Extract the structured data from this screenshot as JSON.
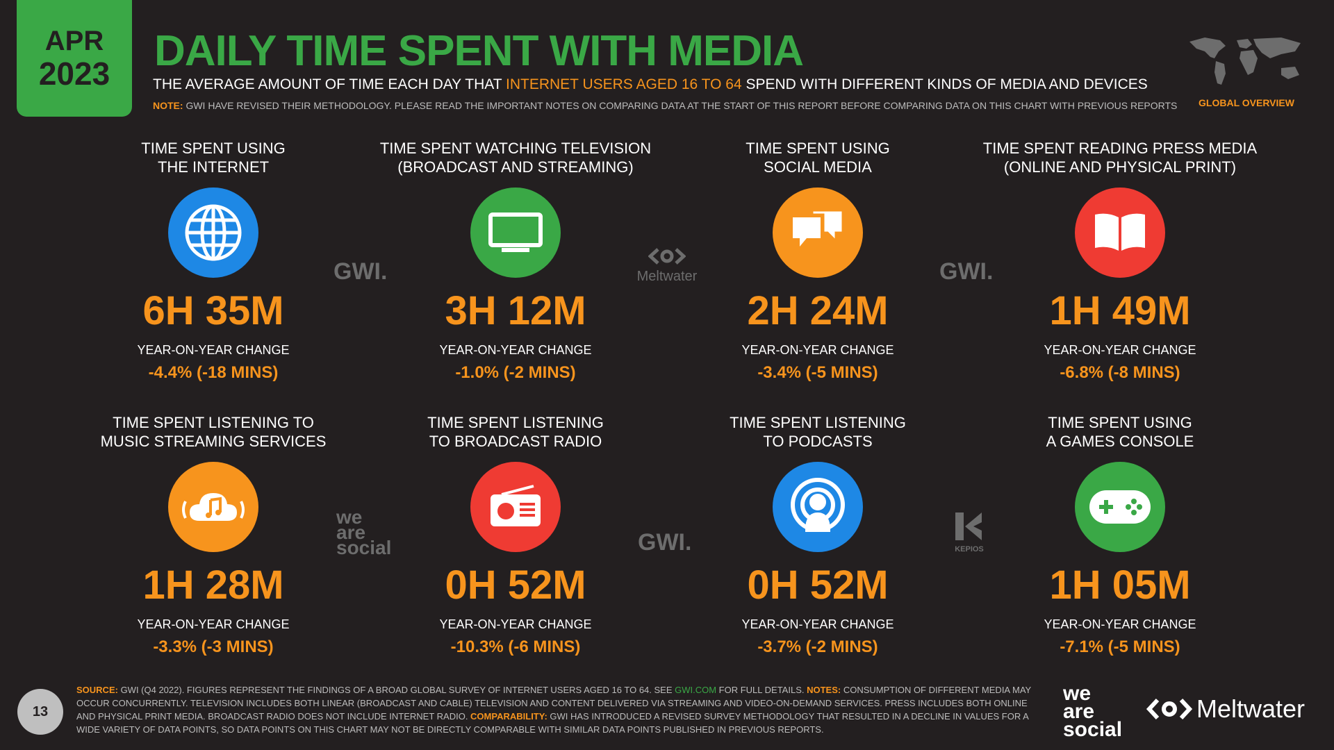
{
  "date": {
    "month": "APR",
    "year": "2023"
  },
  "header": {
    "title": "DAILY TIME SPENT WITH MEDIA",
    "subtitle_a": "THE AVERAGE AMOUNT OF TIME EACH DAY THAT ",
    "subtitle_hl": "INTERNET USERS AGED 16 TO 64",
    "subtitle_b": " SPEND WITH DIFFERENT KINDS OF MEDIA AND DEVICES",
    "note_label": "NOTE:",
    "note_text": " GWI HAVE REVISED THEIR METHODOLOGY. PLEASE READ THE IMPORTANT NOTES ON COMPARING DATA AT THE START OF THIS REPORT BEFORE COMPARING DATA ON THIS CHART WITH PREVIOUS REPORTS",
    "overview": "GLOBAL OVERVIEW"
  },
  "yoy_label": "YEAR-ON-YEAR CHANGE",
  "cells": [
    {
      "l1": "TIME SPENT USING",
      "l2": "THE INTERNET",
      "value": "6H 35M",
      "change": "-4.4% (-18 MINS)",
      "icon": "globe-icon",
      "color": "#1e88e5"
    },
    {
      "l1": "TIME SPENT WATCHING TELEVISION",
      "l2": "(BROADCAST AND STREAMING)",
      "value": "3H 12M",
      "change": "-1.0% (-2 MINS)",
      "icon": "tv-icon",
      "color": "#3aa846"
    },
    {
      "l1": "TIME SPENT USING",
      "l2": "SOCIAL MEDIA",
      "value": "2H 24M",
      "change": "-3.4% (-5 MINS)",
      "icon": "chat-bubbles-icon",
      "color": "#f7941d"
    },
    {
      "l1": "TIME SPENT READING PRESS MEDIA",
      "l2": "(ONLINE AND PHYSICAL PRINT)",
      "value": "1H 49M",
      "change": "-6.8% (-8 MINS)",
      "icon": "book-icon",
      "color": "#ef3b33"
    },
    {
      "l1": "TIME SPENT LISTENING TO",
      "l2": "MUSIC STREAMING SERVICES",
      "value": "1H 28M",
      "change": "-3.3% (-3 MINS)",
      "icon": "music-cloud-icon",
      "color": "#f7941d"
    },
    {
      "l1": "TIME SPENT LISTENING",
      "l2": "TO BROADCAST RADIO",
      "value": "0H 52M",
      "change": "-10.3% (-6 MINS)",
      "icon": "radio-icon",
      "color": "#ef3b33"
    },
    {
      "l1": "TIME SPENT LISTENING",
      "l2": "TO PODCASTS",
      "value": "0H 52M",
      "change": "-3.7% (-2 MINS)",
      "icon": "podcast-icon",
      "color": "#1e88e5"
    },
    {
      "l1": "TIME SPENT USING",
      "l2": "A GAMES CONSOLE",
      "value": "1H 05M",
      "change": "-7.1% (-5 MINS)",
      "icon": "gamepad-icon",
      "color": "#3aa846"
    }
  ],
  "watermarks": {
    "gwi": "GWI.",
    "meltwater": "Meltwater",
    "we": "we",
    "are": "are",
    "social": "social",
    "kepios": "KEPIOS"
  },
  "footer": {
    "page": "13",
    "source_label": "SOURCE:",
    "source_text": " GWI (Q4 2022). FIGURES REPRESENT THE FINDINGS OF A BROAD GLOBAL SURVEY OF INTERNET USERS AGED 16 TO 64. SEE ",
    "link": "GWI.COM",
    "source_text2": " FOR FULL DETAILS. ",
    "notes_label": "NOTES:",
    "notes_text": " CONSUMPTION OF DIFFERENT MEDIA MAY OCCUR CONCURRENTLY. TELEVISION INCLUDES BOTH LINEAR (BROADCAST AND CABLE) TELEVISION AND CONTENT DELIVERED VIA STREAMING AND VIDEO-ON-DEMAND SERVICES. PRESS INCLUDES BOTH ONLINE AND PHYSICAL PRINT MEDIA. BROADCAST RADIO DOES NOT INCLUDE INTERNET RADIO. ",
    "comp_label": "COMPARABILITY:",
    "comp_text": " GWI HAS INTRODUCED A REVISED SURVEY METHODOLOGY THAT RESULTED IN A DECLINE IN VALUES FOR A WIDE VARIETY OF DATA POINTS, SO DATA POINTS ON THIS CHART MAY NOT BE DIRECTLY COMPARABLE WITH SIMILAR DATA POINTS PUBLISHED IN PREVIOUS REPORTS."
  },
  "brand": {
    "we": "we",
    "are": "are",
    "social": "social",
    "meltwater": "Meltwater"
  }
}
